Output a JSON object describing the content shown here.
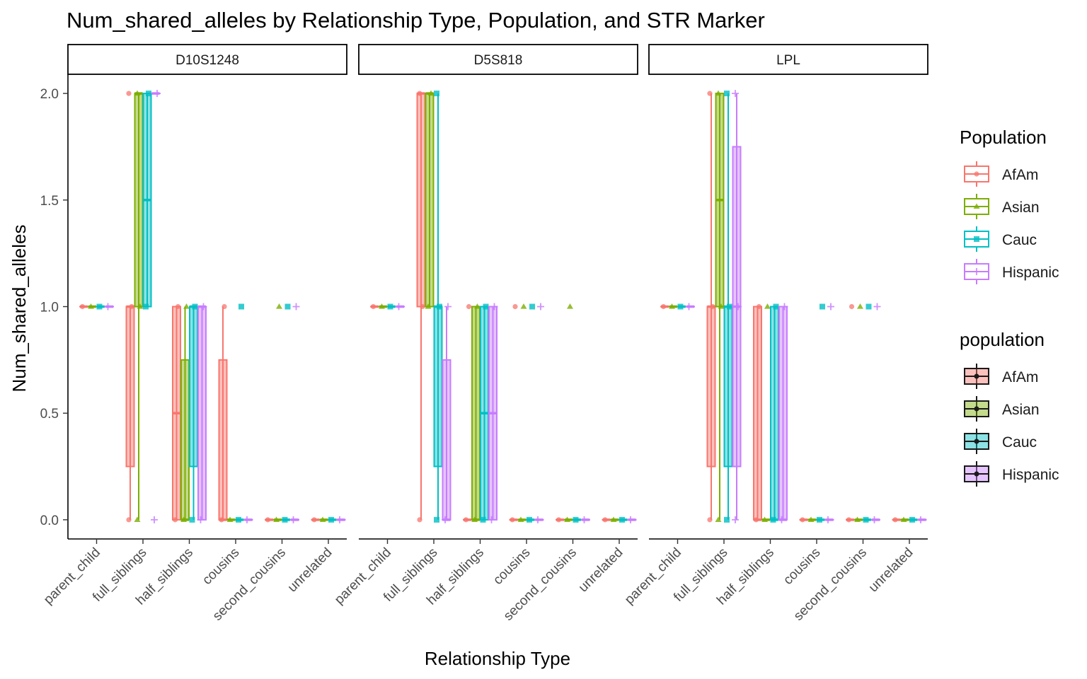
{
  "chart_data": {
    "type": "boxplot",
    "title": "Num_shared_alleles by Relationship Type, Population, and STR Marker",
    "xlabel": "Relationship Type",
    "ylabel": "Num_shared_alleles",
    "ylim": [
      -0.09,
      2.09
    ],
    "yticks": [
      0.0,
      0.5,
      1.0,
      1.5,
      2.0
    ],
    "ytick_labels": [
      "0.0",
      "0.5",
      "1.0",
      "1.5",
      "2.0"
    ],
    "categories": [
      "parent_child",
      "full_siblings",
      "half_siblings",
      "cousins",
      "second_cousins",
      "unrelated"
    ],
    "series": [
      {
        "name": "AfAm",
        "color": "#F8766D"
      },
      {
        "name": "Asian",
        "color": "#7CAE00"
      },
      {
        "name": "Cauc",
        "color": "#00BFC4"
      },
      {
        "name": "Hispanic",
        "color": "#C77CFF"
      }
    ],
    "legend_placement": "right",
    "legends": [
      {
        "title": "Population",
        "items": [
          "AfAm",
          "Asian",
          "Cauc",
          "Hispanic"
        ]
      },
      {
        "title": "population",
        "items": [
          "AfAm",
          "Asian",
          "Cauc",
          "Hispanic"
        ]
      }
    ],
    "grid": false,
    "panels": [
      {
        "name": "D10S1248",
        "boxes": [
          [
            [
              1,
              1,
              1,
              1,
              1
            ],
            [
              1,
              1,
              1,
              1,
              1
            ],
            [
              1,
              1,
              1,
              1,
              1
            ],
            [
              1,
              1,
              1,
              1,
              1
            ]
          ],
          [
            [
              0,
              0.25,
              1,
              1,
              1
            ],
            [
              0,
              1,
              2,
              2,
              2
            ],
            [
              1,
              1,
              1.5,
              2,
              2
            ],
            [
              2,
              2,
              2,
              2,
              2
            ]
          ],
          [
            [
              0,
              0,
              0.5,
              1,
              1
            ],
            [
              0,
              0,
              0,
              0.75,
              1
            ],
            [
              0,
              0.25,
              1,
              1,
              1
            ],
            [
              0,
              0,
              1,
              1,
              1
            ]
          ],
          [
            [
              0,
              0,
              0,
              0.75,
              1
            ],
            [
              0,
              0,
              0,
              0,
              0
            ],
            [
              0,
              0,
              0,
              0,
              0
            ],
            [
              0,
              0,
              0,
              0,
              0
            ]
          ],
          [
            [
              0,
              0,
              0,
              0,
              0
            ],
            [
              0,
              0,
              0,
              0,
              0
            ],
            [
              0,
              0,
              0,
              0,
              0
            ],
            [
              0,
              0,
              0,
              0,
              0
            ]
          ],
          [
            [
              0,
              0,
              0,
              0,
              0
            ],
            [
              0,
              0,
              0,
              0,
              0
            ],
            [
              0,
              0,
              0,
              0,
              0
            ],
            [
              0,
              0,
              0,
              0,
              0
            ]
          ]
        ],
        "points": [
          [
            [
              1
            ],
            [
              1
            ],
            [
              1
            ],
            [
              1
            ]
          ],
          [
            [
              0,
              1,
              2
            ],
            [
              0,
              1,
              2
            ],
            [
              1,
              2
            ],
            [
              0,
              2
            ]
          ],
          [
            [
              0,
              1
            ],
            [
              0,
              1
            ],
            [
              0,
              1
            ],
            [
              0,
              1
            ]
          ],
          [
            [
              0,
              1
            ],
            [
              0
            ],
            [
              0,
              1
            ],
            [
              0
            ]
          ],
          [
            [
              0
            ],
            [
              0,
              1
            ],
            [
              0,
              1
            ],
            [
              0,
              1
            ]
          ],
          [
            [
              0
            ],
            [
              0
            ],
            [
              0
            ],
            [
              0
            ]
          ]
        ]
      },
      {
        "name": "D5S818",
        "boxes": [
          [
            [
              1,
              1,
              1,
              1,
              1
            ],
            [
              1,
              1,
              1,
              1,
              1
            ],
            [
              1,
              1,
              1,
              1,
              1
            ],
            [
              1,
              1,
              1,
              1,
              1
            ]
          ],
          [
            [
              0,
              1,
              2,
              2,
              2
            ],
            [
              1,
              1,
              2,
              2,
              2
            ],
            [
              0,
              0.25,
              1,
              1,
              2
            ],
            [
              0,
              0,
              0,
              0.75,
              1
            ]
          ],
          [
            [
              0,
              0,
              0,
              0,
              0
            ],
            [
              0,
              0,
              0,
              1,
              1
            ],
            [
              0,
              0,
              0.5,
              1,
              1
            ],
            [
              0,
              0,
              0.5,
              1,
              1
            ]
          ],
          [
            [
              0,
              0,
              0,
              0,
              0
            ],
            [
              0,
              0,
              0,
              0,
              0
            ],
            [
              0,
              0,
              0,
              0,
              0
            ],
            [
              0,
              0,
              0,
              0,
              0
            ]
          ],
          [
            [
              0,
              0,
              0,
              0,
              0
            ],
            [
              0,
              0,
              0,
              0,
              0
            ],
            [
              0,
              0,
              0,
              0,
              0
            ],
            [
              0,
              0,
              0,
              0,
              0
            ]
          ],
          [
            [
              0,
              0,
              0,
              0,
              0
            ],
            [
              0,
              0,
              0,
              0,
              0
            ],
            [
              0,
              0,
              0,
              0,
              0
            ],
            [
              0,
              0,
              0,
              0,
              0
            ]
          ]
        ],
        "points": [
          [
            [
              1
            ],
            [
              1
            ],
            [
              1
            ],
            [
              1
            ]
          ],
          [
            [
              0,
              1,
              2
            ],
            [
              1,
              2
            ],
            [
              0,
              1,
              2
            ],
            [
              0,
              1
            ]
          ],
          [
            [
              0,
              1
            ],
            [
              0,
              1
            ],
            [
              0,
              1
            ],
            [
              0,
              1
            ]
          ],
          [
            [
              0,
              1
            ],
            [
              0,
              1
            ],
            [
              0,
              1
            ],
            [
              0,
              1
            ]
          ],
          [
            [
              0
            ],
            [
              0,
              1
            ],
            [
              0
            ],
            [
              0
            ]
          ],
          [
            [
              0
            ],
            [
              0
            ],
            [
              0
            ],
            [
              0
            ]
          ]
        ]
      },
      {
        "name": "LPL",
        "boxes": [
          [
            [
              1,
              1,
              1,
              1,
              1
            ],
            [
              1,
              1,
              1,
              1,
              1
            ],
            [
              1,
              1,
              1,
              1,
              1
            ],
            [
              1,
              1,
              1,
              1,
              1
            ]
          ],
          [
            [
              0,
              0.25,
              1,
              1,
              2
            ],
            [
              0,
              1,
              1.5,
              2,
              2
            ],
            [
              0,
              0.25,
              1,
              1,
              2
            ],
            [
              0,
              0.25,
              1,
              1.75,
              2
            ]
          ],
          [
            [
              0,
              0,
              0,
              1,
              1
            ],
            [
              0,
              0,
              0,
              0,
              0
            ],
            [
              0,
              0,
              0,
              1,
              1
            ],
            [
              0,
              0,
              0,
              1,
              1
            ]
          ],
          [
            [
              0,
              0,
              0,
              0,
              0
            ],
            [
              0,
              0,
              0,
              0,
              0
            ],
            [
              0,
              0,
              0,
              0,
              0
            ],
            [
              0,
              0,
              0,
              0,
              0
            ]
          ],
          [
            [
              0,
              0,
              0,
              0,
              0
            ],
            [
              0,
              0,
              0,
              0,
              0
            ],
            [
              0,
              0,
              0,
              0,
              0
            ],
            [
              0,
              0,
              0,
              0,
              0
            ]
          ],
          [
            [
              0,
              0,
              0,
              0,
              0
            ],
            [
              0,
              0,
              0,
              0,
              0
            ],
            [
              0,
              0,
              0,
              0,
              0
            ],
            [
              0,
              0,
              0,
              0,
              0
            ]
          ]
        ],
        "points": [
          [
            [
              1
            ],
            [
              1
            ],
            [
              1
            ],
            [
              1
            ]
          ],
          [
            [
              0,
              1,
              2
            ],
            [
              0,
              1,
              2
            ],
            [
              0,
              1,
              2
            ],
            [
              0,
              1,
              2
            ]
          ],
          [
            [
              0,
              1
            ],
            [
              0,
              1
            ],
            [
              0,
              1
            ],
            [
              0,
              1
            ]
          ],
          [
            [
              0
            ],
            [
              0
            ],
            [
              0,
              1
            ],
            [
              0,
              1
            ]
          ],
          [
            [
              0,
              1
            ],
            [
              0,
              1
            ],
            [
              0,
              1
            ],
            [
              0,
              1
            ]
          ],
          [
            [
              0
            ],
            [
              0
            ],
            [
              0
            ],
            [
              0
            ]
          ]
        ]
      }
    ]
  }
}
